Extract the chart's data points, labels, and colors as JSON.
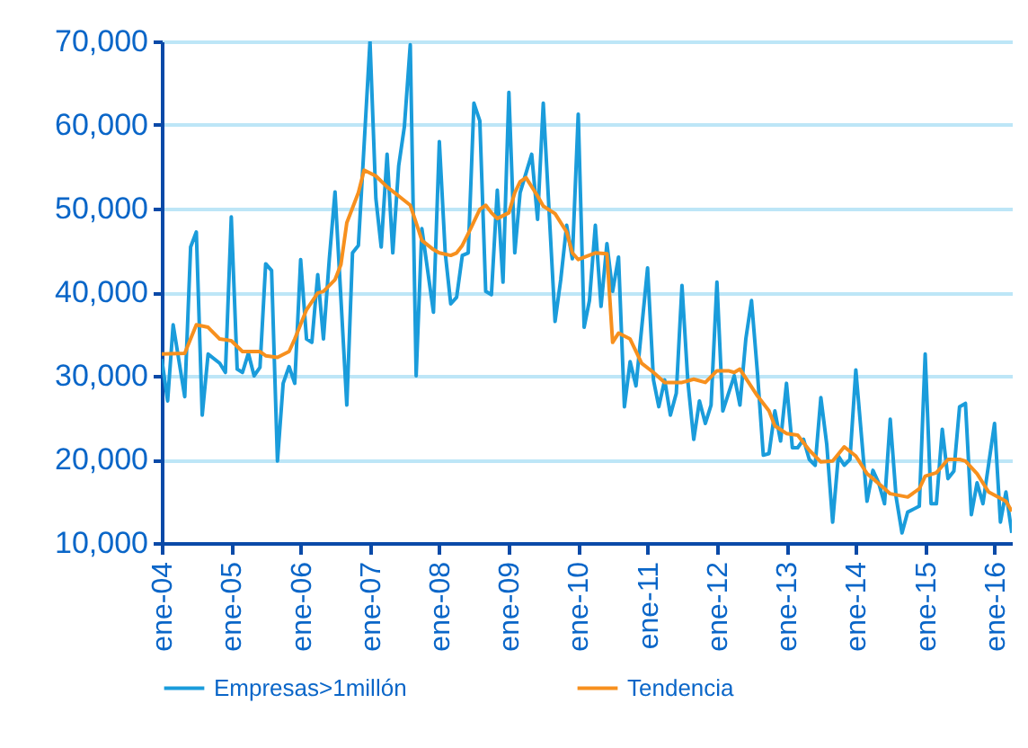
{
  "chart_data": {
    "type": "line",
    "xlim": [
      "2004-01",
      "2016-04"
    ],
    "xticks": [
      {
        "value": "2004-01",
        "label": "ene-04"
      },
      {
        "value": "2005-01",
        "label": "ene-05"
      },
      {
        "value": "2006-01",
        "label": "ene-06"
      },
      {
        "value": "2007-01",
        "label": "ene-07"
      },
      {
        "value": "2008-01",
        "label": "ene-08"
      },
      {
        "value": "2009-01",
        "label": "ene-09"
      },
      {
        "value": "2010-01",
        "label": "ene-10"
      },
      {
        "value": "2011-01",
        "label": "ene-11"
      },
      {
        "value": "2012-01",
        "label": "ene-12"
      },
      {
        "value": "2013-01",
        "label": "ene-13"
      },
      {
        "value": "2014-01",
        "label": "ene-14"
      },
      {
        "value": "2015-01",
        "label": "ene-15"
      },
      {
        "value": "2016-01",
        "label": "ene-16"
      }
    ],
    "ylim": [
      10000,
      70000
    ],
    "yticks": [
      {
        "value": 10000,
        "label": "10,000"
      },
      {
        "value": 20000,
        "label": "20,000"
      },
      {
        "value": 30000,
        "label": "30,000"
      },
      {
        "value": 40000,
        "label": "40,000"
      },
      {
        "value": 50000,
        "label": "50,000"
      },
      {
        "value": 60000,
        "label": "60,000"
      },
      {
        "value": 70000,
        "label": "70,000"
      }
    ],
    "grid": "y",
    "legend": "bottom",
    "marker": "none",
    "line_style": "solid",
    "series": [
      {
        "name": "Empresas>1millón",
        "color": "#1a9cdb",
        "x": [
          "2004-01",
          "2004-02",
          "2004-03",
          "2004-05",
          "2004-06",
          "2004-07",
          "2004-08",
          "2004-09",
          "2004-11",
          "2004-12",
          "2005-01",
          "2005-02",
          "2005-03",
          "2005-04",
          "2005-05",
          "2005-06",
          "2005-07",
          "2005-08",
          "2005-09",
          "2005-10",
          "2005-11",
          "2005-12",
          "2006-01",
          "2006-02",
          "2006-03",
          "2006-04",
          "2006-05",
          "2006-06",
          "2006-07",
          "2006-09",
          "2006-10",
          "2006-11",
          "2007-01",
          "2007-02",
          "2007-03",
          "2007-04",
          "2007-05",
          "2007-06",
          "2007-07",
          "2007-08",
          "2007-09",
          "2007-10",
          "2007-12",
          "2008-01",
          "2008-02",
          "2008-03",
          "2008-04",
          "2008-05",
          "2008-06",
          "2008-07",
          "2008-08",
          "2008-09",
          "2008-10",
          "2008-11",
          "2008-12",
          "2009-01",
          "2009-02",
          "2009-03",
          "2009-05",
          "2009-06",
          "2009-07",
          "2009-09",
          "2009-10",
          "2009-11",
          "2009-12",
          "2010-01",
          "2010-02",
          "2010-03",
          "2010-04",
          "2010-05",
          "2010-06",
          "2010-07",
          "2010-08",
          "2010-09",
          "2010-10",
          "2010-11",
          "2011-01",
          "2011-02",
          "2011-03",
          "2011-04",
          "2011-05",
          "2011-06",
          "2011-07",
          "2011-08",
          "2011-09",
          "2011-10",
          "2011-11",
          "2011-12",
          "2012-01",
          "2012-02",
          "2012-04",
          "2012-05",
          "2012-06",
          "2012-07",
          "2012-08",
          "2012-09",
          "2012-10",
          "2012-11",
          "2012-12",
          "2013-01",
          "2013-02",
          "2013-03",
          "2013-04",
          "2013-05",
          "2013-06",
          "2013-07",
          "2013-08",
          "2013-09",
          "2013-10",
          "2013-11",
          "2013-12",
          "2014-01",
          "2014-03",
          "2014-04",
          "2014-05",
          "2014-06",
          "2014-07",
          "2014-08",
          "2014-09",
          "2014-10",
          "2014-12",
          "2015-01",
          "2015-02",
          "2015-03",
          "2015-04",
          "2015-05",
          "2015-06",
          "2015-07",
          "2015-08",
          "2015-09",
          "2015-10",
          "2015-11",
          "2016-01",
          "2016-02",
          "2016-03",
          "2016-04"
        ],
        "values": [
          32000,
          27000,
          36100,
          27500,
          45400,
          47200,
          25300,
          32600,
          31500,
          30400,
          49000,
          30800,
          30400,
          32700,
          30000,
          31000,
          43400,
          42600,
          19800,
          29100,
          31100,
          29100,
          43900,
          34400,
          34000,
          42100,
          34400,
          44000,
          52000,
          26500,
          44700,
          45600,
          70000,
          51200,
          45400,
          56500,
          44700,
          55100,
          59800,
          69600,
          30000,
          47600,
          37600,
          58000,
          44700,
          38600,
          39400,
          44400,
          44700,
          62600,
          60500,
          40100,
          39700,
          52200,
          41200,
          63900,
          44700,
          51900,
          56500,
          48700,
          62600,
          36500,
          41500,
          48000,
          44000,
          61300,
          35800,
          39000,
          48000,
          38300,
          45800,
          40100,
          44200,
          26300,
          31700,
          28800,
          42900,
          29500,
          26300,
          29500,
          25300,
          27900,
          40800,
          29300,
          22400,
          27000,
          24300,
          26500,
          41200,
          25800,
          30000,
          26500,
          34400,
          39000,
          30400,
          20500,
          20700,
          25800,
          22200,
          29100,
          21400,
          21400,
          22400,
          20000,
          19300,
          27400,
          21800,
          12500,
          20400,
          19300,
          20000,
          30700,
          15000,
          18700,
          17200,
          14700,
          24800,
          15500,
          11200,
          13700,
          14400,
          32600,
          14700,
          14700,
          23600,
          17700,
          18600,
          26300,
          26700,
          13400,
          17200,
          14700,
          24300,
          12500,
          16100,
          11200
        ]
      },
      {
        "name": "Tendencia",
        "color": "#f7901e",
        "x": [
          "2004-01",
          "2004-05",
          "2004-07",
          "2004-09",
          "2004-11",
          "2005-01",
          "2005-03",
          "2005-06",
          "2005-07",
          "2005-09",
          "2005-11",
          "2005-12",
          "2006-02",
          "2006-04",
          "2006-05",
          "2006-07",
          "2006-08",
          "2006-09",
          "2006-11",
          "2006-12",
          "2007-02",
          "2007-04",
          "2007-06",
          "2007-08",
          "2007-09",
          "2007-10",
          "2007-12",
          "2008-01",
          "2008-03",
          "2008-04",
          "2008-05",
          "2008-06",
          "2008-08",
          "2008-09",
          "2008-10",
          "2008-11",
          "2009-01",
          "2009-02",
          "2009-03",
          "2009-04",
          "2009-06",
          "2009-07",
          "2009-09",
          "2009-11",
          "2009-12",
          "2010-01",
          "2010-04",
          "2010-06",
          "2010-07",
          "2010-08",
          "2010-10",
          "2010-12",
          "2011-02",
          "2011-04",
          "2011-07",
          "2011-09",
          "2011-11",
          "2012-01",
          "2012-03",
          "2012-04",
          "2012-05",
          "2012-08",
          "2012-10",
          "2012-11",
          "2013-01",
          "2013-03",
          "2013-05",
          "2013-07",
          "2013-09",
          "2013-11",
          "2014-01",
          "2014-03",
          "2014-04",
          "2014-06",
          "2014-07",
          "2014-10",
          "2014-12",
          "2015-01",
          "2015-03",
          "2015-05",
          "2015-07",
          "2015-08",
          "2015-10",
          "2015-12",
          "2016-03",
          "2016-04"
        ],
        "values": [
          32600,
          32700,
          36100,
          35800,
          34400,
          34200,
          32900,
          32900,
          32400,
          32200,
          32900,
          34400,
          37900,
          39900,
          40100,
          41500,
          43300,
          48300,
          51900,
          54600,
          53900,
          52600,
          51500,
          50400,
          48300,
          46200,
          45100,
          44700,
          44400,
          44700,
          45600,
          47000,
          49900,
          50400,
          49500,
          48800,
          49500,
          51900,
          53200,
          53700,
          51500,
          50300,
          49400,
          47200,
          44700,
          43900,
          44700,
          44600,
          34000,
          35100,
          34400,
          31500,
          30400,
          29200,
          29200,
          29600,
          29200,
          30600,
          30600,
          30400,
          30800,
          27600,
          25800,
          24000,
          23100,
          22900,
          21100,
          19700,
          19800,
          21500,
          20400,
          18300,
          17700,
          16500,
          15900,
          15500,
          16500,
          18000,
          18400,
          20000,
          20000,
          19800,
          18300,
          16100,
          15000,
          13800
        ]
      }
    ]
  }
}
